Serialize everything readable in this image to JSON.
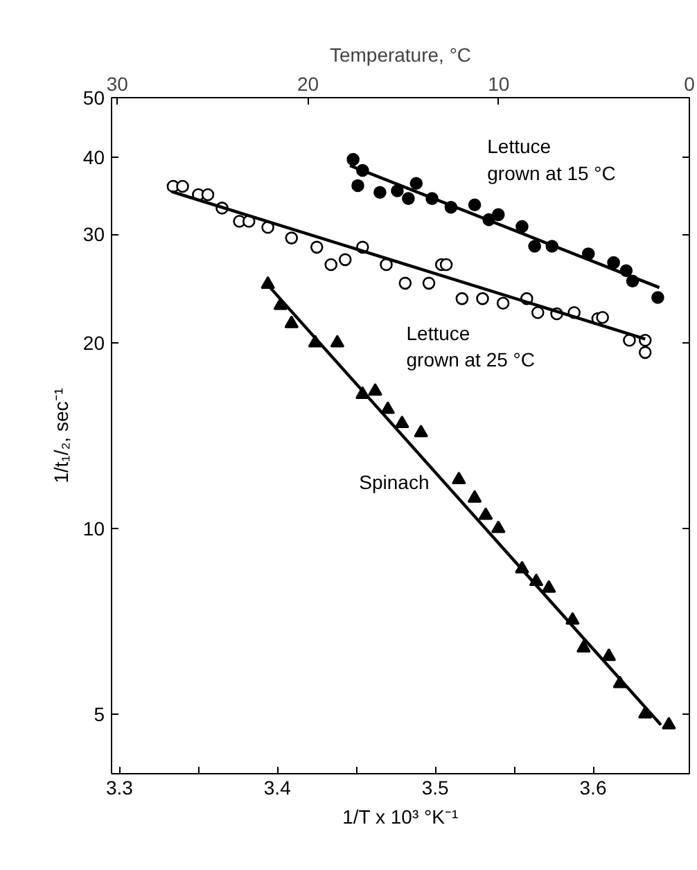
{
  "chart_data": {
    "type": "scatter",
    "xlabel": "1/T x 10³ °K⁻¹",
    "ylabel": "1/t₁/₂, sec⁻¹",
    "x2label": "Temperature, °C",
    "log": "y",
    "grid": false,
    "xlim": [
      3.295,
      3.661
    ],
    "ylim": [
      4,
      50
    ],
    "xticks": [
      3.3,
      {
        "value": 3.35,
        "label": null
      },
      3.4,
      {
        "value": 3.45,
        "label": null
      },
      3.5,
      {
        "value": 3.55,
        "label": null
      },
      3.6
    ],
    "x2lim": [
      30.3,
      0
    ],
    "x2ticks": [
      30,
      20,
      10,
      0
    ],
    "yticks": [
      5,
      10,
      20,
      30,
      40,
      50
    ],
    "series": [
      {
        "name": "Lettuce grown at 15 °C",
        "marker": "circle",
        "color": "#000000",
        "x": [
          3.448,
          3.454,
          3.451,
          3.465,
          3.476,
          3.483,
          3.488,
          3.498,
          3.51,
          3.525,
          3.534,
          3.54,
          3.555,
          3.563,
          3.574,
          3.597,
          3.613,
          3.621,
          3.625,
          3.641
        ],
        "values": [
          39.7,
          38.1,
          36.0,
          35.1,
          35.3,
          34.3,
          36.3,
          34.3,
          33.2,
          33.5,
          31.7,
          32.3,
          30.9,
          28.7,
          28.7,
          27.9,
          27.0,
          26.2,
          25.2,
          23.7
        ]
      },
      {
        "type": "line",
        "color": "#000000",
        "x": [
          3.446,
          3.642
        ],
        "values": [
          38.8,
          24.6
        ]
      },
      {
        "name": "Lettuce grown at 25 °C",
        "marker": "circle",
        "color": "#ffffff",
        "x": [
          3.334,
          3.34,
          3.35,
          3.356,
          3.365,
          3.376,
          3.382,
          3.394,
          3.409,
          3.425,
          3.434,
          3.443,
          3.454,
          3.469,
          3.481,
          3.496,
          3.504,
          3.507,
          3.517,
          3.53,
          3.543,
          3.558,
          3.565,
          3.577,
          3.588,
          3.603,
          3.606,
          3.623,
          3.633,
          3.633
        ],
        "values": [
          35.9,
          35.9,
          34.8,
          34.8,
          33.1,
          31.5,
          31.5,
          30.8,
          29.6,
          28.6,
          26.8,
          27.3,
          28.6,
          26.8,
          25.0,
          25.0,
          26.8,
          26.8,
          23.6,
          23.6,
          23.2,
          23.6,
          22.4,
          22.3,
          22.4,
          21.9,
          22.0,
          20.2,
          20.2,
          19.3
        ]
      },
      {
        "type": "line",
        "color": "#000000",
        "x": [
          3.333,
          3.633
        ],
        "values": [
          35.2,
          20.3
        ]
      },
      {
        "name": "Spinach",
        "marker": "triangle",
        "color": "#000000",
        "x": [
          3.394,
          3.402,
          3.409,
          3.424,
          3.438,
          3.454,
          3.462,
          3.47,
          3.479,
          3.491,
          3.515,
          3.525,
          3.532,
          3.54,
          3.555,
          3.564,
          3.572,
          3.587,
          3.594,
          3.61,
          3.617,
          3.633,
          3.648
        ],
        "values": [
          24.9,
          23.0,
          21.5,
          20.0,
          20.0,
          16.5,
          16.7,
          15.6,
          14.8,
          14.3,
          12.0,
          11.2,
          10.5,
          10.0,
          8.6,
          8.2,
          8.0,
          7.1,
          6.4,
          6.2,
          5.6,
          5.0,
          4.8
        ]
      },
      {
        "type": "line",
        "color": "#000000",
        "x": [
          3.393,
          3.643
        ],
        "values": [
          25.0,
          4.8
        ]
      }
    ]
  }
}
